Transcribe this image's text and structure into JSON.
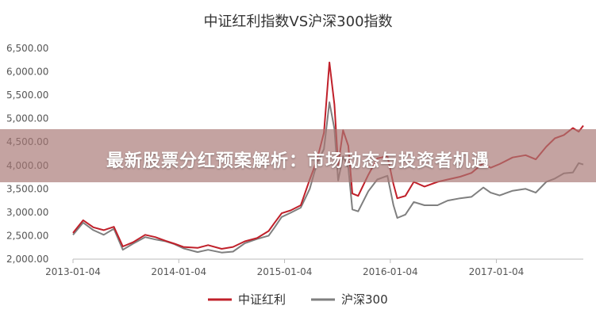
{
  "chart_data": {
    "type": "line",
    "title": "中证红利指数VS沪深300指数",
    "ylim": [
      2000,
      6500
    ],
    "yticks": [
      "6,500.00",
      "6,000.00",
      "5,500.00",
      "5,000.00",
      "4,500.00",
      "4,000.00",
      "3,500.00",
      "3,000.00",
      "2,500.00",
      "2,000.00"
    ],
    "ytick_values": [
      6500,
      6000,
      5500,
      5000,
      4500,
      4000,
      3500,
      3000,
      2500,
      2000
    ],
    "xlim": [
      "2013-01-04",
      "2017-10-31"
    ],
    "xticks": [
      "2013-01-04",
      "2014-01-04",
      "2015-01-04",
      "2016-01-04",
      "2017-01-04"
    ],
    "legend_position": "bottom-center",
    "grid": false,
    "series": [
      {
        "name": "中证红利",
        "color": "#c0202a",
        "points": [
          [
            "2013-01-04",
            2560
          ],
          [
            "2013-02-08",
            2830
          ],
          [
            "2013-03-15",
            2680
          ],
          [
            "2013-04-20",
            2620
          ],
          [
            "2013-05-25",
            2690
          ],
          [
            "2013-06-25",
            2270
          ],
          [
            "2013-07-30",
            2360
          ],
          [
            "2013-09-10",
            2520
          ],
          [
            "2013-10-15",
            2470
          ],
          [
            "2013-11-20",
            2390
          ],
          [
            "2013-12-20",
            2330
          ],
          [
            "2014-01-20",
            2260
          ],
          [
            "2014-03-10",
            2240
          ],
          [
            "2014-04-15",
            2300
          ],
          [
            "2014-06-01",
            2220
          ],
          [
            "2014-07-10",
            2260
          ],
          [
            "2014-08-20",
            2380
          ],
          [
            "2014-10-01",
            2450
          ],
          [
            "2014-11-10",
            2600
          ],
          [
            "2014-12-01",
            2780
          ],
          [
            "2014-12-25",
            2980
          ],
          [
            "2015-01-25",
            3040
          ],
          [
            "2015-03-01",
            3150
          ],
          [
            "2015-04-01",
            3700
          ],
          [
            "2015-04-25",
            4100
          ],
          [
            "2015-05-20",
            4700
          ],
          [
            "2015-06-08",
            6200
          ],
          [
            "2015-06-25",
            5300
          ],
          [
            "2015-07-08",
            4000
          ],
          [
            "2015-07-25",
            4750
          ],
          [
            "2015-08-12",
            4420
          ],
          [
            "2015-08-26",
            3400
          ],
          [
            "2015-09-15",
            3350
          ],
          [
            "2015-10-20",
            3800
          ],
          [
            "2015-11-20",
            4150
          ],
          [
            "2015-12-25",
            4200
          ],
          [
            "2016-01-15",
            3600
          ],
          [
            "2016-01-28",
            3300
          ],
          [
            "2016-02-25",
            3350
          ],
          [
            "2016-03-25",
            3650
          ],
          [
            "2016-05-01",
            3550
          ],
          [
            "2016-06-15",
            3650
          ],
          [
            "2016-07-20",
            3700
          ],
          [
            "2016-09-01",
            3760
          ],
          [
            "2016-10-10",
            3840
          ],
          [
            "2016-11-20",
            4050
          ],
          [
            "2016-12-15",
            3950
          ],
          [
            "2017-01-15",
            4030
          ],
          [
            "2017-03-01",
            4170
          ],
          [
            "2017-04-15",
            4220
          ],
          [
            "2017-05-20",
            4130
          ],
          [
            "2017-06-25",
            4400
          ],
          [
            "2017-07-25",
            4580
          ],
          [
            "2017-08-25",
            4650
          ],
          [
            "2017-09-25",
            4800
          ],
          [
            "2017-10-15",
            4720
          ],
          [
            "2017-10-31",
            4850
          ]
        ]
      },
      {
        "name": "沪深300",
        "color": "#7f7f7f",
        "points": [
          [
            "2013-01-04",
            2520
          ],
          [
            "2013-02-08",
            2780
          ],
          [
            "2013-03-15",
            2620
          ],
          [
            "2013-04-20",
            2520
          ],
          [
            "2013-05-25",
            2650
          ],
          [
            "2013-06-25",
            2200
          ],
          [
            "2013-07-30",
            2330
          ],
          [
            "2013-09-10",
            2470
          ],
          [
            "2013-10-15",
            2420
          ],
          [
            "2013-11-20",
            2380
          ],
          [
            "2013-12-20",
            2320
          ],
          [
            "2014-01-20",
            2230
          ],
          [
            "2014-03-10",
            2150
          ],
          [
            "2014-04-15",
            2200
          ],
          [
            "2014-06-01",
            2140
          ],
          [
            "2014-07-10",
            2160
          ],
          [
            "2014-08-20",
            2340
          ],
          [
            "2014-10-01",
            2430
          ],
          [
            "2014-11-10",
            2500
          ],
          [
            "2014-12-01",
            2680
          ],
          [
            "2014-12-25",
            2900
          ],
          [
            "2015-01-25",
            2990
          ],
          [
            "2015-03-01",
            3100
          ],
          [
            "2015-04-01",
            3500
          ],
          [
            "2015-04-25",
            4030
          ],
          [
            "2015-05-20",
            4350
          ],
          [
            "2015-06-08",
            5350
          ],
          [
            "2015-06-25",
            4780
          ],
          [
            "2015-07-08",
            3680
          ],
          [
            "2015-07-25",
            4200
          ],
          [
            "2015-08-12",
            3950
          ],
          [
            "2015-08-26",
            3060
          ],
          [
            "2015-09-15",
            3020
          ],
          [
            "2015-10-20",
            3450
          ],
          [
            "2015-11-20",
            3700
          ],
          [
            "2015-12-25",
            3780
          ],
          [
            "2016-01-15",
            3150
          ],
          [
            "2016-01-28",
            2880
          ],
          [
            "2016-02-25",
            2950
          ],
          [
            "2016-03-25",
            3220
          ],
          [
            "2016-05-01",
            3150
          ],
          [
            "2016-06-15",
            3150
          ],
          [
            "2016-07-20",
            3250
          ],
          [
            "2016-09-01",
            3300
          ],
          [
            "2016-10-10",
            3330
          ],
          [
            "2016-11-20",
            3530
          ],
          [
            "2016-12-15",
            3420
          ],
          [
            "2017-01-15",
            3360
          ],
          [
            "2017-03-01",
            3460
          ],
          [
            "2017-04-15",
            3500
          ],
          [
            "2017-05-20",
            3420
          ],
          [
            "2017-06-25",
            3650
          ],
          [
            "2017-07-25",
            3720
          ],
          [
            "2017-08-25",
            3830
          ],
          [
            "2017-09-25",
            3850
          ],
          [
            "2017-10-15",
            4050
          ],
          [
            "2017-10-31",
            4020
          ]
        ]
      }
    ]
  },
  "banner": {
    "text": "最新股票分红预案解析：市场动态与投资者机遇"
  }
}
